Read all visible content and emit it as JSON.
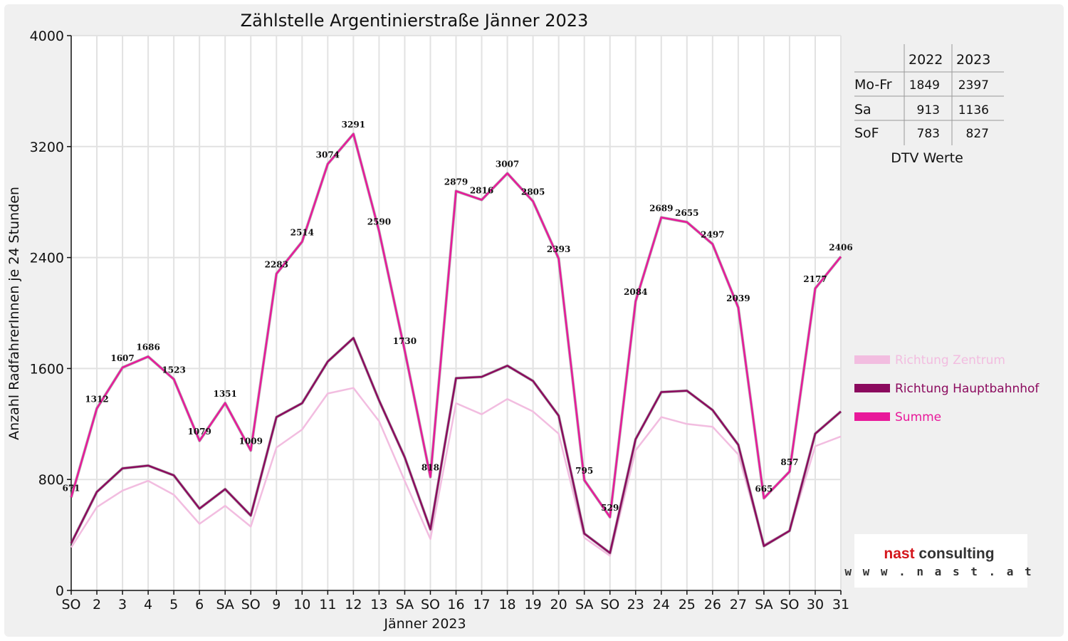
{
  "chart_data": {
    "type": "line",
    "title": "Zählstelle Argentinierstraße Jänner 2023",
    "xlabel": "Jänner 2023",
    "ylabel": "Anzahl RadfahrerInnen je 24 Stunden",
    "ylim": [
      0,
      4000
    ],
    "yticks": [
      0,
      800,
      1600,
      2400,
      3200,
      4000
    ],
    "grid": true,
    "legend_position": "right",
    "categories": [
      "SO",
      "2",
      "3",
      "4",
      "5",
      "6",
      "SA",
      "SO",
      "9",
      "10",
      "11",
      "12",
      "13",
      "SA",
      "SO",
      "16",
      "17",
      "18",
      "19",
      "20",
      "SA",
      "SO",
      "23",
      "24",
      "25",
      "26",
      "27",
      "SA",
      "SO",
      "30",
      "31"
    ],
    "red_categories": [
      0,
      5,
      7,
      14,
      21,
      28
    ],
    "series": [
      {
        "name": "Richtung Zentrum",
        "color": "#f2bde0",
        "values": [
          310,
          600,
          720,
          790,
          690,
          480,
          610,
          460,
          1030,
          1160,
          1420,
          1460,
          1220,
          790,
          370,
          1350,
          1270,
          1380,
          1290,
          1130,
          380,
          250,
          1010,
          1250,
          1200,
          1180,
          980,
          330,
          430,
          1040,
          1110
        ]
      },
      {
        "name": "Richtung Hauptbahnhof",
        "color": "#8b0a5e",
        "values": [
          340,
          710,
          880,
          900,
          830,
          590,
          730,
          540,
          1250,
          1350,
          1650,
          1820,
          1370,
          960,
          440,
          1530,
          1540,
          1620,
          1510,
          1260,
          410,
          270,
          1090,
          1430,
          1440,
          1300,
          1050,
          320,
          430,
          1130,
          1290
        ]
      },
      {
        "name": "Summe",
        "color": "#e8199a",
        "values": [
          671,
          1312,
          1607,
          1686,
          1523,
          1079,
          1351,
          1009,
          2283,
          2514,
          3074,
          3291,
          2590,
          1730,
          818,
          2879,
          2816,
          3007,
          2805,
          2393,
          795,
          529,
          2084,
          2689,
          2655,
          2497,
          2039,
          665,
          857,
          2177,
          2406
        ]
      }
    ],
    "data_labels": [
      "671",
      "1312",
      "1607",
      "1686",
      "1523",
      "1079",
      "1351",
      "1009",
      "2283",
      "2514",
      "3074",
      "3291",
      "2590",
      "1730",
      "818",
      "2879",
      "2816",
      "3007",
      "2805",
      "2393",
      "795",
      "529",
      "2084",
      "2689",
      "2655",
      "2497",
      "2039",
      "665",
      "857",
      "2177",
      "2406"
    ]
  },
  "dtv_table": {
    "headers": [
      "",
      "2022",
      "2023"
    ],
    "rows": [
      {
        "label": "Mo-Fr",
        "v2022": "1849",
        "v2023": "2397"
      },
      {
        "label": "Sa",
        "v2022": "913",
        "v2023": "1136"
      },
      {
        "label": "SoF",
        "v2022": "783",
        "v2023": "827"
      }
    ],
    "caption": "DTV Werte"
  },
  "logo": {
    "name": "nast consulting",
    "url": "w w w . n a s t . a t"
  }
}
